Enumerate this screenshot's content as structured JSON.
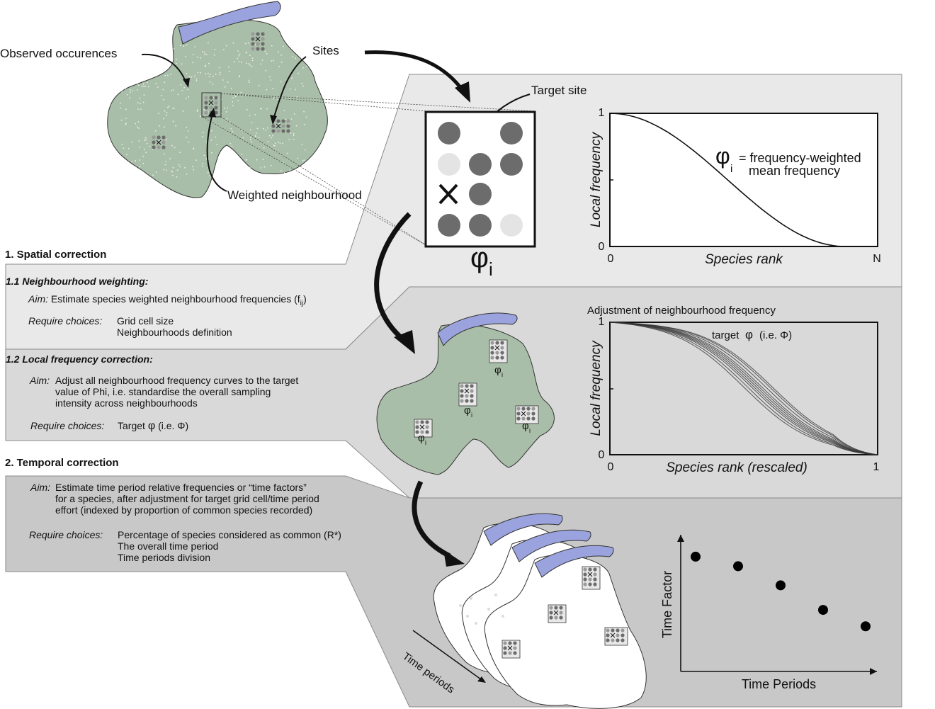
{
  "colors": {
    "map_green": "#a9bea8",
    "coast_blue": "#9aa3dd",
    "panel1": "#e9e9e9",
    "panel2": "#d9d9d9",
    "panel3": "#c8c8c8",
    "dot_dark": "#6c6c6c",
    "dot_light": "#e4e4e4"
  },
  "labels": {
    "observed": "Observed occurences",
    "sites": "Sites",
    "weighted": "Weighted neighbourhood",
    "target_site": "Target site",
    "phi": "φ",
    "phi_sub": "i",
    "time_periods_arrow": "Time periods"
  },
  "section1": {
    "title": "1. Spatial correction",
    "sub1_title": "1.1 Neighbourhood weighting:",
    "sub1_aim_label": "Aim:",
    "sub1_aim": "Estimate species weighted neighbourhood frequencies (f",
    "sub1_aim_sub": "ij",
    "sub1_aim_end": ")",
    "sub1_req_label": "Require choices:",
    "sub1_req1": "Grid cell size",
    "sub1_req2": "Neighbourhoods definition",
    "sub2_title": "1.2 Local frequency correction:",
    "sub2_aim_label": "Aim:",
    "sub2_aim1": "Adjust all neighbourhood frequency curves to the target",
    "sub2_aim2": "value of Phi, i.e. standardise the overall sampling",
    "sub2_aim3": "intensity across neighbourhoods",
    "sub2_req_label": "Require choices:",
    "sub2_req1": "Target",
    "sub2_req_phi": "φ",
    "sub2_req2": "(i.e. Φ)"
  },
  "section2": {
    "title": "2. Temporal correction",
    "aim_label": "Aim:",
    "aim1": "Estimate time period relative frequencies or “time factors”",
    "aim2": "for a species, after adjustment for target grid cell/time period",
    "aim3": "effort (indexed by proportion of common species recorded)",
    "req_label": "Require choices:",
    "req1": "Percentage of species considered as common (R*)",
    "req2": "The overall time period",
    "req3": "Time periods division"
  },
  "chart_data": [
    {
      "type": "line",
      "title": "",
      "xlabel": "Species rank",
      "ylabel": "Local frequency",
      "x_tick_labels": [
        "0",
        "N"
      ],
      "y_tick_labels": [
        "0",
        "1"
      ],
      "ylim": [
        0,
        1
      ],
      "annotation_phi": "φ",
      "annotation_sub": "i",
      "annotation_text1": "= frequency-weighted",
      "annotation_text2": "mean frequency",
      "series": [
        {
          "name": "curve",
          "x": [
            0,
            0.1,
            0.2,
            0.3,
            0.4,
            0.5,
            0.6,
            0.7,
            0.8,
            0.9,
            1.0
          ],
          "y": [
            1.0,
            0.98,
            0.91,
            0.79,
            0.63,
            0.45,
            0.27,
            0.12,
            0.03,
            0.0,
            0.0
          ]
        }
      ]
    },
    {
      "type": "line",
      "title": "Adjustment of neighbourhood frequency",
      "xlabel": "Species rank (rescaled)",
      "ylabel": "Local frequency",
      "x_tick_labels": [
        "0",
        "1"
      ],
      "y_tick_labels": [
        "0",
        "1"
      ],
      "ylim": [
        0,
        1
      ],
      "annotation_text1": "target",
      "annotation_phi": "φ",
      "annotation_text2": "(i.e. Φ)",
      "series_shifts": [
        -0.05,
        -0.035,
        -0.02,
        -0.01,
        0.0,
        0.01,
        0.02,
        0.035,
        0.05,
        0.06
      ]
    },
    {
      "type": "scatter",
      "title": "",
      "xlabel": "Time Periods",
      "ylabel": "Time Factor",
      "x": [
        1,
        2,
        3,
        4,
        5
      ],
      "y": [
        0.84,
        0.77,
        0.63,
        0.45,
        0.33
      ],
      "ylim": [
        0,
        1
      ]
    }
  ]
}
